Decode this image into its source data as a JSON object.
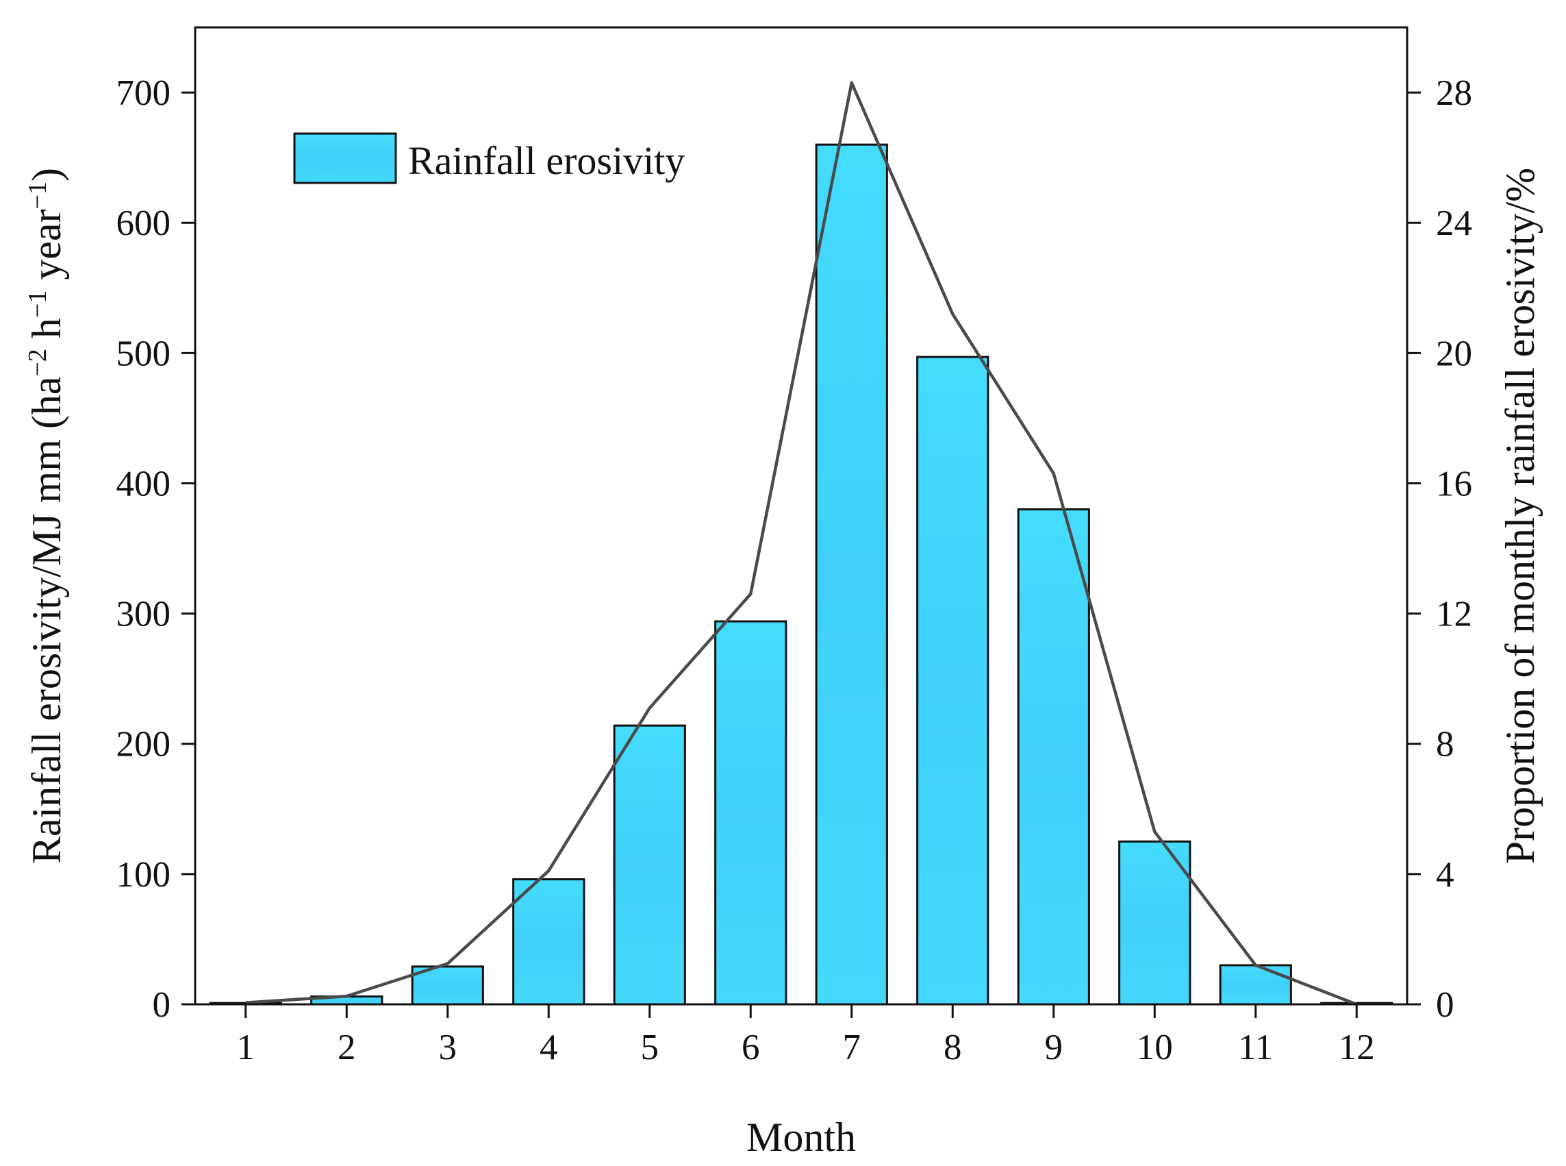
{
  "chart_data": {
    "type": "bar",
    "categories": [
      "1",
      "2",
      "3",
      "4",
      "5",
      "6",
      "7",
      "8",
      "9",
      "10",
      "11",
      "12"
    ],
    "series": [
      {
        "name": "Rainfall erosivity",
        "kind": "bar",
        "axis": "left",
        "values": [
          1,
          6,
          29,
          96,
          214,
          294,
          660,
          497,
          380,
          125,
          30,
          1
        ]
      },
      {
        "name": "Proportion of monthly rainfall erosivity",
        "kind": "line",
        "axis": "right",
        "values": [
          0.05,
          0.25,
          1.25,
          4.1,
          9.1,
          12.6,
          28.3,
          21.2,
          16.3,
          5.3,
          1.2,
          0.0
        ]
      }
    ],
    "xlabel": "Month",
    "ylabel": {
      "main": "Rainfall erosivity/MJ mm (ha",
      "sup1": "−2",
      "mid1": " h",
      "sup2": "−1",
      "mid2": " year",
      "sup3": "−1",
      "end": ")"
    },
    "y2label": "Proportion of monthly rainfall erosivity/%",
    "ylim": [
      0,
      750
    ],
    "y2lim": [
      0,
      30
    ],
    "yticks": [
      0,
      100,
      200,
      300,
      400,
      500,
      600,
      700
    ],
    "y2ticks": [
      0,
      4,
      8,
      12,
      16,
      20,
      24,
      28
    ],
    "legend": {
      "label": "Rainfall erosivity",
      "position": "top-left"
    },
    "colors": {
      "bar": "#42d4fa",
      "bar_edge": "#111111",
      "line": "#4a4a4a",
      "axis": "#111111"
    },
    "grid": false
  }
}
